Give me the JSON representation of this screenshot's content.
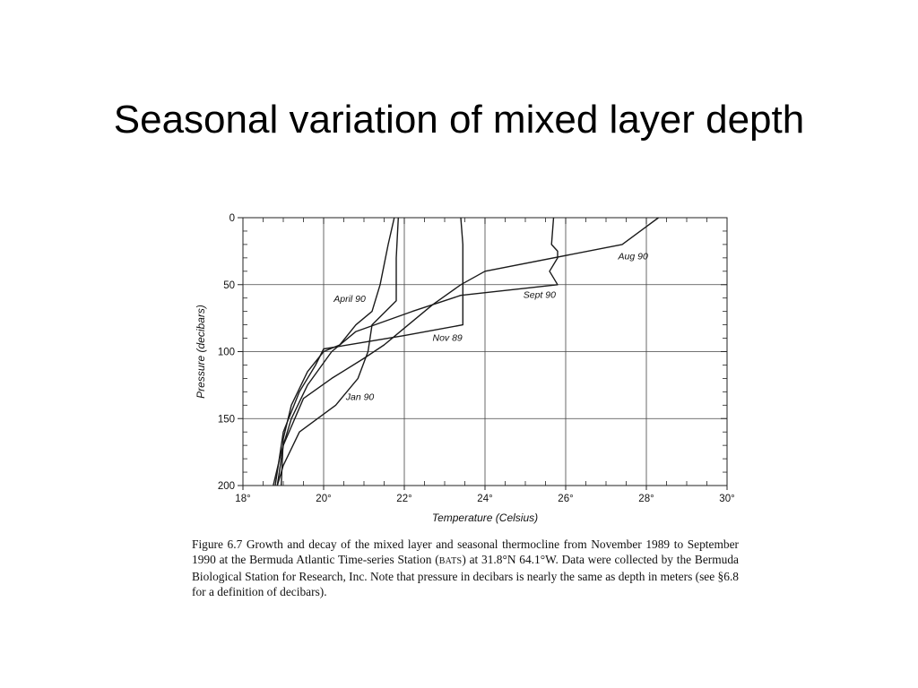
{
  "slide": {
    "title": "Seasonal variation of mixed layer depth"
  },
  "caption": {
    "part1": "Figure 6.7 Growth and decay  of the mixed layer and seasonal thermocline from November 1989 to September 1990 at the Bermuda Atlantic Time-series Station (",
    "abbr": "BATS",
    "part2": ") at 31.8°N 64.1°W. Data were collected by the Bermuda Biological Station for Research, Inc.  Note that pressure in decibars is nearly the same as depth in meters (see §6.8 for a definition of decibars)."
  },
  "chart_data": {
    "type": "line",
    "xlabel": "Temperature (Celsius)",
    "ylabel": "Pressure (decibars)",
    "xlim": [
      18,
      30
    ],
    "ylim": [
      0,
      200
    ],
    "y_inverted": true,
    "x_ticks": [
      18,
      20,
      22,
      24,
      26,
      28,
      30
    ],
    "x_tick_labels": [
      "18°",
      "20°",
      "22°",
      "24°",
      "26°",
      "28°",
      "30°"
    ],
    "y_ticks": [
      0,
      50,
      100,
      150,
      200
    ],
    "y_tick_labels": [
      "0",
      "50",
      "100",
      "150",
      "200"
    ],
    "grid": true,
    "series": [
      {
        "name": "Nov 89",
        "label_at": [
          22.7,
          92
        ],
        "points": [
          [
            23.4,
            0
          ],
          [
            23.45,
            20
          ],
          [
            23.45,
            50
          ],
          [
            23.45,
            80
          ],
          [
            22.0,
            88
          ],
          [
            20.0,
            98
          ],
          [
            19.8,
            110
          ],
          [
            19.4,
            130
          ],
          [
            19.0,
            160
          ],
          [
            18.8,
            200
          ]
        ]
      },
      {
        "name": "Jan 90",
        "label_at": [
          20.55,
          136
        ],
        "points": [
          [
            21.85,
            0
          ],
          [
            21.8,
            30
          ],
          [
            21.8,
            62
          ],
          [
            21.2,
            80
          ],
          [
            21.1,
            100
          ],
          [
            20.85,
            120
          ],
          [
            20.3,
            140
          ],
          [
            19.4,
            160
          ],
          [
            19.0,
            185
          ],
          [
            18.85,
            200
          ]
        ]
      },
      {
        "name": "April 90",
        "label_at": [
          20.25,
          63
        ],
        "points": [
          [
            21.75,
            0
          ],
          [
            21.6,
            20
          ],
          [
            21.4,
            50
          ],
          [
            21.2,
            70
          ],
          [
            20.8,
            80
          ],
          [
            20.4,
            95
          ],
          [
            20.0,
            100
          ],
          [
            19.6,
            115
          ],
          [
            19.2,
            140
          ],
          [
            19.0,
            165
          ],
          [
            18.95,
            200
          ]
        ]
      },
      {
        "name": "Aug 90",
        "label_at": [
          27.3,
          31
        ],
        "points": [
          [
            28.3,
            0
          ],
          [
            27.4,
            20
          ],
          [
            24.0,
            40
          ],
          [
            23.4,
            50
          ],
          [
            22.7,
            65
          ],
          [
            22.1,
            80
          ],
          [
            21.5,
            95
          ],
          [
            21.0,
            105
          ],
          [
            20.2,
            120
          ],
          [
            19.5,
            135
          ],
          [
            19.0,
            170
          ],
          [
            18.85,
            200
          ]
        ]
      },
      {
        "name": "Sept 90",
        "label_at": [
          24.95,
          60
        ],
        "points": [
          [
            25.7,
            0
          ],
          [
            25.65,
            20
          ],
          [
            25.8,
            25
          ],
          [
            25.8,
            30
          ],
          [
            25.6,
            40
          ],
          [
            25.8,
            50
          ],
          [
            23.4,
            58
          ],
          [
            22.2,
            70
          ],
          [
            20.8,
            85
          ],
          [
            20.2,
            100
          ],
          [
            19.6,
            125
          ],
          [
            19.2,
            150
          ],
          [
            18.95,
            175
          ],
          [
            18.75,
            200
          ]
        ]
      }
    ],
    "line_color": "#1a1a1a"
  }
}
